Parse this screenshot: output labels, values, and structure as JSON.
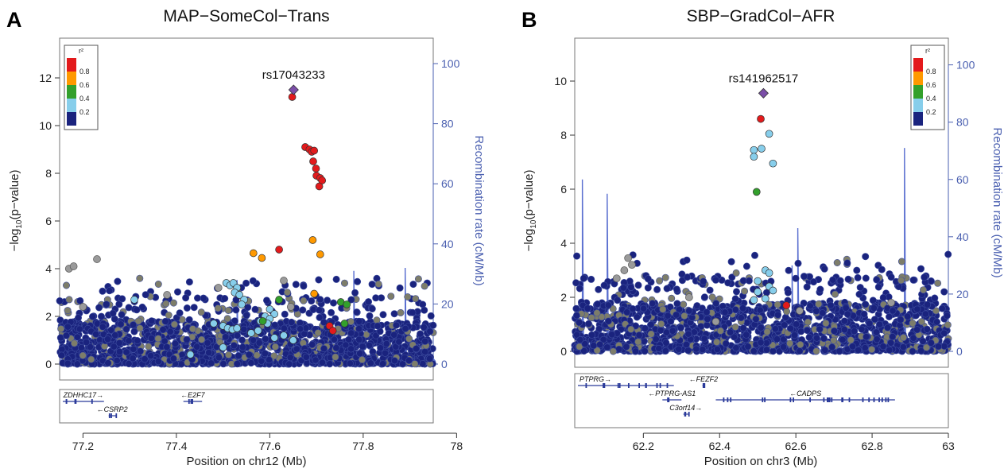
{
  "panels": [
    {
      "letter": "A",
      "title": "MAP−SomeCol−Trans",
      "xlabel": "Position on chr12 (Mb)",
      "ylabel_left_pre": "−log",
      "ylabel_left_sub": "10",
      "ylabel_left_post": "(p−value)",
      "ylabel_right": "Recombination rate (cM/Mb)",
      "xlim": [
        77.15,
        77.95
      ],
      "ylim": [
        0,
        13
      ],
      "rlim": [
        0,
        100
      ],
      "xticks": [
        "77.2",
        "77.4",
        "77.6",
        "77.8",
        "78"
      ],
      "xtick_values": [
        77.2,
        77.4,
        77.6,
        77.8,
        78.0
      ],
      "yticks": [
        "0",
        "2",
        "4",
        "6",
        "8",
        "10",
        "12"
      ],
      "ytick_values": [
        0,
        2,
        4,
        6,
        8,
        10,
        12
      ],
      "rticks": [
        "0",
        "20",
        "40",
        "60",
        "80",
        "100"
      ],
      "rtick_values": [
        0,
        20,
        40,
        60,
        80,
        100
      ],
      "lead_snp": {
        "label": "rs17043233",
        "x": 77.651,
        "y": 11.5
      },
      "legend_position": "top-left",
      "chart_data": {
        "type": "scatter",
        "series": [
          {
            "r2_bin": "0.8-1.0",
            "color": "#e31a1c",
            "points": [
              [
                77.648,
                11.2
              ],
              [
                77.676,
                9.1
              ],
              [
                77.685,
                9.0
              ],
              [
                77.69,
                8.9
              ],
              [
                77.695,
                8.95
              ],
              [
                77.693,
                8.5
              ],
              [
                77.699,
                8.2
              ],
              [
                77.7,
                7.9
              ],
              [
                77.708,
                7.8
              ],
              [
                77.712,
                7.7
              ],
              [
                77.706,
                7.45
              ],
              [
                77.62,
                4.8
              ],
              [
                77.728,
                1.6
              ],
              [
                77.735,
                1.4
              ]
            ]
          },
          {
            "r2_bin": "0.6-0.8",
            "color": "#ff9900",
            "points": [
              [
                77.565,
                4.65
              ],
              [
                77.583,
                4.45
              ],
              [
                77.692,
                5.2
              ],
              [
                77.708,
                4.6
              ],
              [
                77.695,
                2.95
              ]
            ]
          },
          {
            "r2_bin": "0.4-0.6",
            "color": "#33a02c",
            "points": [
              [
                77.62,
                2.7
              ],
              [
                77.585,
                1.8
              ],
              [
                77.752,
                2.6
              ],
              [
                77.765,
                2.5
              ],
              [
                77.76,
                1.7
              ]
            ]
          },
          {
            "r2_bin": "0.2-0.4",
            "color": "#87ceeb",
            "points": [
              [
                77.507,
                3.4
              ],
              [
                77.515,
                3.3
              ],
              [
                77.522,
                3.4
              ],
              [
                77.53,
                3.2
              ],
              [
                77.525,
                3.0
              ],
              [
                77.535,
                2.9
              ],
              [
                77.545,
                2.7
              ],
              [
                77.54,
                2.5
              ],
              [
                77.6,
                2.3
              ],
              [
                77.61,
                2.1
              ],
              [
                77.59,
                2.0
              ],
              [
                77.6,
                1.9
              ],
              [
                77.595,
                1.7
              ],
              [
                77.58,
                1.8
              ],
              [
                77.48,
                1.7
              ],
              [
                77.5,
                1.6
              ],
              [
                77.51,
                1.5
              ],
              [
                77.52,
                1.45
              ],
              [
                77.53,
                1.5
              ],
              [
                77.56,
                1.3
              ],
              [
                77.575,
                1.4
              ],
              [
                77.61,
                1.1
              ],
              [
                77.63,
                1.2
              ],
              [
                77.5,
                0.7
              ],
              [
                77.43,
                0.4
              ],
              [
                77.31,
                2.7
              ],
              [
                77.65,
                1.0
              ]
            ]
          },
          {
            "r2_bin": "0.0-0.2",
            "color": "#1a237e",
            "density_cloud": true
          }
        ],
        "grey_points": [
          [
            77.17,
            4.0
          ],
          [
            77.18,
            4.1
          ],
          [
            77.2,
            2.4
          ],
          [
            77.23,
            4.4
          ],
          [
            77.49,
            3.2
          ],
          [
            77.63,
            3.5
          ],
          [
            77.645,
            2.4
          ],
          [
            77.38,
            2.9
          ]
        ],
        "recombination_spikes": [
          [
            77.53,
            28
          ],
          [
            77.78,
            31
          ],
          [
            77.89,
            32
          ]
        ]
      },
      "genes": [
        {
          "name": "ZDHHC17",
          "dir": "→",
          "start": 77.155,
          "end": 77.245,
          "row": 0
        },
        {
          "name": "E2F7",
          "dir": "←",
          "start": 77.415,
          "end": 77.455,
          "row": 0
        },
        {
          "name": "CSRP2",
          "dir": "←",
          "start": 77.255,
          "end": 77.27,
          "row": 1
        }
      ]
    },
    {
      "letter": "B",
      "title": "SBP−GradCol−AFR",
      "xlabel": "Position on chr3 (Mb)",
      "ylabel_left_pre": "−log",
      "ylabel_left_sub": "10",
      "ylabel_left_post": "(p−value)",
      "ylabel_right": "Recombination rate (cM/Mb)",
      "xlim": [
        62.02,
        63.0
      ],
      "ylim": [
        0,
        11
      ],
      "rlim": [
        0,
        100
      ],
      "xticks": [
        "62.2",
        "62.4",
        "62.6",
        "62.8",
        "63"
      ],
      "xtick_values": [
        62.2,
        62.4,
        62.6,
        62.8,
        63.0
      ],
      "yticks": [
        "0",
        "2",
        "4",
        "6",
        "8",
        "10"
      ],
      "ytick_values": [
        0,
        2,
        4,
        6,
        8,
        10
      ],
      "rticks": [
        "0",
        "20",
        "40",
        "60",
        "80",
        "100"
      ],
      "rtick_values": [
        0,
        20,
        40,
        60,
        80,
        100
      ],
      "lead_snp": {
        "label": "rs141962517",
        "x": 62.515,
        "y": 9.55
      },
      "legend_position": "top-right",
      "chart_data": {
        "type": "scatter",
        "series": [
          {
            "r2_bin": "0.8-1.0",
            "color": "#e31a1c",
            "points": [
              [
                62.508,
                8.6
              ],
              [
                62.575,
                1.7
              ]
            ]
          },
          {
            "r2_bin": "0.6-0.8",
            "color": "#ff9900",
            "points": []
          },
          {
            "r2_bin": "0.4-0.6",
            "color": "#33a02c",
            "points": [
              [
                62.497,
                5.9
              ]
            ]
          },
          {
            "r2_bin": "0.2-0.4",
            "color": "#87ceeb",
            "points": [
              [
                62.49,
                7.45
              ],
              [
                62.49,
                7.2
              ],
              [
                62.51,
                7.5
              ],
              [
                62.53,
                8.05
              ],
              [
                62.54,
                6.95
              ],
              [
                62.52,
                3.0
              ],
              [
                62.53,
                2.9
              ],
              [
                62.5,
                2.6
              ],
              [
                62.53,
                2.4
              ],
              [
                62.54,
                2.25
              ],
              [
                62.5,
                2.2
              ],
              [
                62.49,
                1.9
              ],
              [
                62.52,
                1.95
              ]
            ]
          },
          {
            "r2_bin": "0.0-0.2",
            "color": "#1a237e",
            "density_cloud": true
          }
        ],
        "grey_points": [
          [
            62.16,
            3.45
          ],
          [
            62.17,
            3.2
          ],
          [
            62.15,
            3.0
          ],
          [
            62.13,
            2.7
          ],
          [
            62.32,
            2.0
          ],
          [
            62.39,
            1.1
          ],
          [
            62.61,
            1.5
          ],
          [
            62.85,
            1.8
          ]
        ],
        "recombination_spikes": [
          [
            62.04,
            60
          ],
          [
            62.105,
            55
          ],
          [
            62.59,
            30
          ],
          [
            62.605,
            43
          ],
          [
            62.885,
            71
          ]
        ]
      },
      "genes": [
        {
          "name": "PTPRG",
          "dir": "→",
          "start": 62.02,
          "end": 62.28,
          "row": 0
        },
        {
          "name": "FEZF2",
          "dir": "←",
          "start": 62.355,
          "end": 62.36,
          "row": 0
        },
        {
          "name": "PTPRG-AS1",
          "dir": "←",
          "start": 62.25,
          "end": 62.3,
          "row": 1
        },
        {
          "name": "CADPS",
          "dir": "←",
          "start": 62.39,
          "end": 62.86,
          "row": 1
        },
        {
          "name": "C3orf14",
          "dir": "→",
          "start": 62.305,
          "end": 62.318,
          "row": 2
        }
      ]
    }
  ],
  "legend": {
    "title": "r²",
    "labels": [
      "0.8",
      "0.6",
      "0.4",
      "0.2"
    ],
    "colors": [
      "#e31a1c",
      "#ff9900",
      "#33a02c",
      "#87ceeb",
      "#1a237e"
    ]
  }
}
